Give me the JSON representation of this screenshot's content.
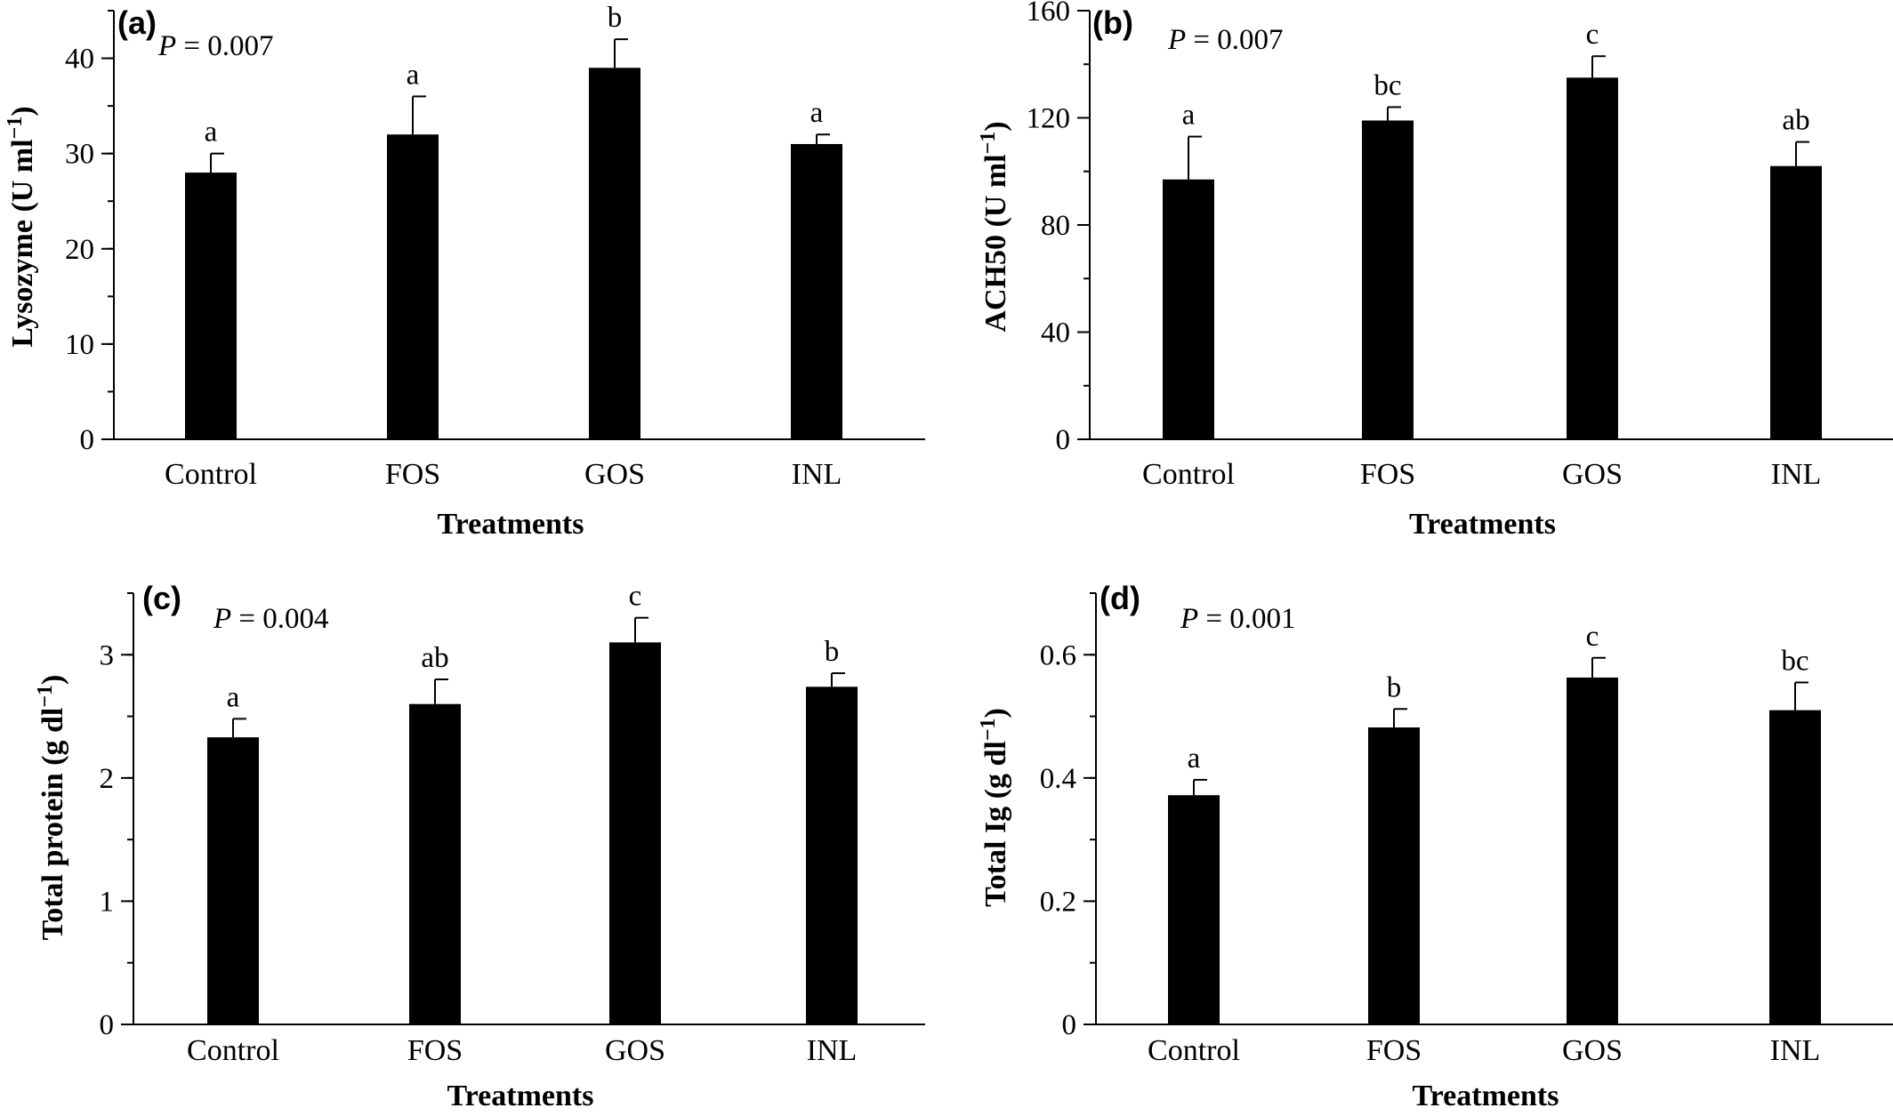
{
  "chart_data": [
    {
      "panel": "(a)",
      "type": "bar",
      "categories": [
        "Control",
        "FOS",
        "GOS",
        "INL"
      ],
      "values": [
        28,
        32,
        39,
        31
      ],
      "errors": [
        2,
        4,
        3,
        1
      ],
      "significance": [
        "a",
        "a",
        "b",
        "a"
      ],
      "p_label": "P",
      "p_value": "= 0.007",
      "ylabel": "Lysozyme (U ml",
      "ylabel_sup": "−1",
      "ylabel_end": ")",
      "xlabel": "Treatments",
      "ylim": [
        0,
        45
      ],
      "yticks": [
        0,
        10,
        20,
        30,
        40
      ],
      "ytick_labels": [
        "0",
        "10",
        "20",
        "30",
        "40"
      ],
      "minor_step": 5
    },
    {
      "panel": "(b)",
      "type": "bar",
      "categories": [
        "Control",
        "FOS",
        "GOS",
        "INL"
      ],
      "values": [
        97,
        119,
        135,
        102
      ],
      "errors": [
        16,
        5,
        8,
        9
      ],
      "significance": [
        "a",
        "bc",
        "c",
        "ab"
      ],
      "p_label": "P",
      "p_value": "= 0.007",
      "ylabel": "ACH50 (U ml",
      "ylabel_sup": "−1",
      "ylabel_end": ")",
      "xlabel": "Treatments",
      "ylim": [
        0,
        160
      ],
      "yticks": [
        0,
        40,
        80,
        120,
        160
      ],
      "ytick_labels": [
        "0",
        "40",
        "80",
        "120",
        "160"
      ],
      "minor_step": 20
    },
    {
      "panel": "(c)",
      "type": "bar",
      "categories": [
        "Control",
        "FOS",
        "GOS",
        "INL"
      ],
      "values": [
        2.33,
        2.6,
        3.1,
        2.74
      ],
      "errors": [
        0.15,
        0.2,
        0.2,
        0.11
      ],
      "significance": [
        "a",
        "ab",
        "c",
        "b"
      ],
      "p_label": "P",
      "p_value": "= 0.004",
      "ylabel": "Total protein (g dl",
      "ylabel_sup": "−1",
      "ylabel_end": ")",
      "xlabel": "Treatments",
      "ylim": [
        0,
        3.5
      ],
      "yticks": [
        0,
        1,
        2,
        3
      ],
      "ytick_labels": [
        "0",
        "1",
        "2",
        "3"
      ],
      "minor_step": 0.5
    },
    {
      "panel": "(d)",
      "type": "bar",
      "categories": [
        "Control",
        "FOS",
        "GOS",
        "INL"
      ],
      "values": [
        0.372,
        0.482,
        0.563,
        0.51
      ],
      "errors": [
        0.025,
        0.03,
        0.032,
        0.045
      ],
      "significance": [
        "a",
        "b",
        "c",
        "bc"
      ],
      "p_label": "P",
      "p_value": "= 0.001",
      "ylabel": "Total Ig (g dl",
      "ylabel_sup": "−1",
      "ylabel_end": ")",
      "xlabel": "Treatments",
      "ylim": [
        0,
        0.7
      ],
      "yticks": [
        0,
        0.2,
        0.4,
        0.6
      ],
      "ytick_labels": [
        "0",
        "0.2",
        "0.4",
        "0.6"
      ],
      "minor_step": 0.1
    }
  ],
  "colors": {
    "bar": "#000000",
    "axis": "#000000",
    "background": "#ffffff"
  }
}
